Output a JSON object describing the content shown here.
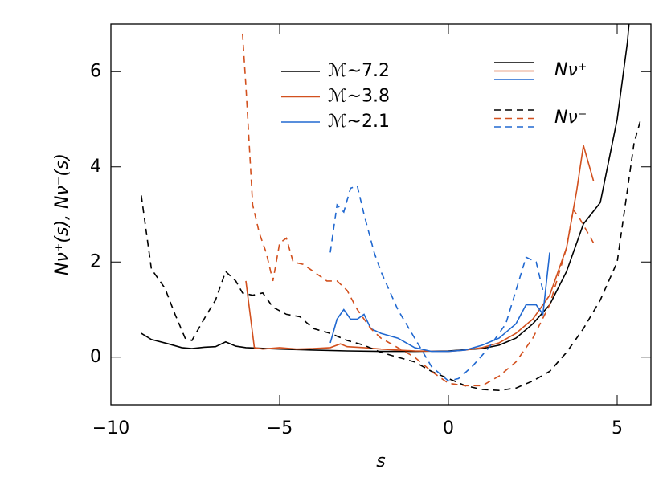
{
  "chart_data": {
    "type": "line",
    "x_label": "s",
    "y_label": "Nν⁺(s), Nν⁻(s)",
    "xlim": [
      -10,
      6
    ],
    "ylim": [
      -1,
      7
    ],
    "xticks": [
      {
        "value": -10,
        "label": "−10"
      },
      {
        "value": -5,
        "label": "−5"
      },
      0,
      5
    ],
    "yticks": [
      0,
      2,
      4,
      6
    ],
    "series": [
      {
        "name": "ℳ~7.2",
        "color": "#000000",
        "dashed": false,
        "x": [
          -9.1,
          -8.8,
          -8.3,
          -7.9,
          -7.6,
          -7.2,
          -6.9,
          -6.6,
          -6.3,
          -6,
          -5,
          -4,
          -3,
          -2,
          -1,
          0,
          1,
          1.5,
          2,
          2.5,
          3,
          3.5,
          4,
          4.5,
          5,
          5.3,
          5.35
        ],
        "values": [
          0.5,
          0.37,
          0.28,
          0.2,
          0.18,
          0.21,
          0.22,
          0.32,
          0.23,
          0.2,
          0.17,
          0.15,
          0.13,
          0.12,
          0.12,
          0.13,
          0.18,
          0.25,
          0.4,
          0.7,
          1.1,
          1.8,
          2.8,
          3.25,
          5,
          6.6,
          7
        ]
      },
      {
        "name": "ℳ~3.8",
        "color": "#d2501e",
        "dashed": false,
        "x": [
          -6,
          -5.75,
          -5.5,
          -5,
          -4.5,
          -4,
          -3.5,
          -3.2,
          -3,
          -2.5,
          -2,
          -1.5,
          -1,
          0,
          0.5,
          1,
          1.5,
          2,
          2.5,
          3,
          3.5,
          3.8,
          4,
          4.3
        ],
        "values": [
          1.6,
          0.2,
          0.17,
          0.2,
          0.17,
          0.18,
          0.2,
          0.28,
          0.22,
          0.2,
          0.17,
          0.15,
          0.13,
          0.12,
          0.15,
          0.2,
          0.3,
          0.5,
          0.8,
          1.3,
          2.3,
          3.5,
          4.45,
          3.7
        ]
      },
      {
        "name": "ℳ~2.1",
        "color": "#2068d0",
        "dashed": false,
        "x": [
          -3.5,
          -3.3,
          -3.1,
          -2.9,
          -2.7,
          -2.5,
          -2.3,
          -2,
          -1.5,
          -1,
          -0.5,
          0,
          0.5,
          1,
          1.5,
          2,
          2.3,
          2.6,
          2.8,
          3
        ],
        "values": [
          0.3,
          0.8,
          1.0,
          0.8,
          0.8,
          0.9,
          0.6,
          0.5,
          0.4,
          0.2,
          0.12,
          0.12,
          0.15,
          0.25,
          0.4,
          0.7,
          1.1,
          1.1,
          0.9,
          2.2
        ]
      },
      {
        "color": "#000000",
        "dashed": true,
        "x": [
          -9.1,
          -8.8,
          -8.4,
          -8.1,
          -7.8,
          -7.6,
          -7.2,
          -6.9,
          -6.6,
          -6.3,
          -6.1,
          -5.8,
          -5.5,
          -5.2,
          -4.8,
          -4.4,
          -4,
          -3.5,
          -3,
          -2.5,
          -2,
          -1.5,
          -1,
          -0.5,
          0,
          0.5,
          1,
          1.5,
          2,
          2.5,
          3,
          3.5,
          4,
          4.5,
          5,
          5.3,
          5.5,
          5.7
        ],
        "values": [
          3.4,
          1.85,
          1.45,
          0.9,
          0.4,
          0.35,
          0.85,
          1.2,
          1.8,
          1.6,
          1.35,
          1.3,
          1.35,
          1.05,
          0.9,
          0.85,
          0.6,
          0.5,
          0.35,
          0.25,
          0.1,
          0,
          -0.1,
          -0.3,
          -0.45,
          -0.6,
          -0.68,
          -0.7,
          -0.65,
          -0.5,
          -0.3,
          0.1,
          0.6,
          1.2,
          2,
          3.5,
          4.5,
          5.0
        ]
      },
      {
        "color": "#d2501e",
        "dashed": true,
        "x": [
          -6.1,
          -6,
          -5.8,
          -5.6,
          -5.4,
          -5.2,
          -5,
          -4.8,
          -4.6,
          -4.3,
          -4,
          -3.6,
          -3.3,
          -3,
          -2.7,
          -2.3,
          -2,
          -1.5,
          -1,
          -0.5,
          0,
          0.5,
          1,
          1.5,
          2,
          2.5,
          3,
          3.5,
          3.7,
          3.9,
          4.3
        ],
        "values": [
          6.8,
          5.7,
          3.2,
          2.6,
          2.2,
          1.6,
          2.4,
          2.5,
          2.0,
          1.95,
          1.8,
          1.6,
          1.6,
          1.4,
          1.0,
          0.6,
          0.4,
          0.2,
          0,
          -0.3,
          -0.55,
          -0.6,
          -0.6,
          -0.4,
          -0.1,
          0.4,
          1.1,
          2.3,
          3.1,
          2.9,
          2.4
        ]
      },
      {
        "color": "#2068d0",
        "dashed": true,
        "x": [
          -3.5,
          -3.3,
          -3.1,
          -2.9,
          -2.7,
          -2.5,
          -2.2,
          -2,
          -1.5,
          -1,
          -0.5,
          0,
          0.3,
          0.7,
          1.2,
          1.7,
          2,
          2.3,
          2.6,
          2.8
        ],
        "values": [
          2.2,
          3.2,
          3.05,
          3.55,
          3.6,
          3.0,
          2.2,
          1.8,
          1.0,
          0.4,
          -0.2,
          -0.5,
          -0.45,
          -0.2,
          0.2,
          0.7,
          1.4,
          2.1,
          2.0,
          1.4
        ]
      }
    ],
    "line_legend": [
      {
        "label": "Nν⁺",
        "dashed": false
      },
      {
        "label": "Nν⁻",
        "dashed": true
      }
    ]
  }
}
